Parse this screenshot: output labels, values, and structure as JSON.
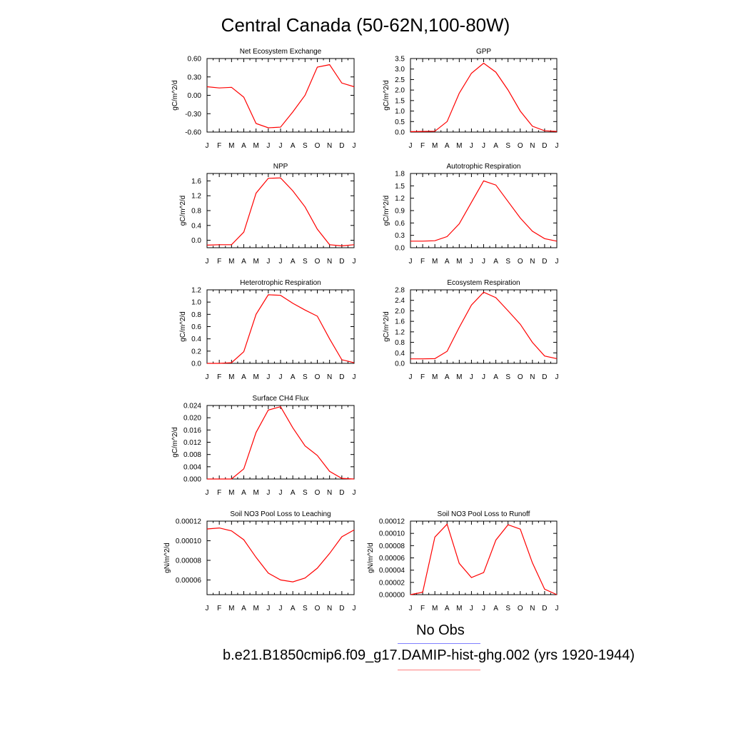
{
  "page": {
    "title": "Central Canada (50-62N,100-80W)",
    "legend": [
      {
        "label": "No Obs",
        "color": "#8080ff"
      },
      {
        "label": "b.e21.B1850cmip6.f09_g17.DAMIP-hist-ghg.002 (yrs 1920-1944)",
        "color": "#ff8080"
      }
    ]
  },
  "chart_data": [
    {
      "type": "line",
      "title": "Net Ecosystem Exchange",
      "ylabel": "gC/m^2/d",
      "x": [
        "J",
        "F",
        "M",
        "A",
        "M",
        "J",
        "J",
        "A",
        "S",
        "O",
        "N",
        "D",
        "J"
      ],
      "ylim": [
        -0.6,
        0.6
      ],
      "yticks": [
        "-0.60",
        "-0.30",
        "0.00",
        "0.30",
        "0.60"
      ],
      "series": [
        {
          "color": "#ff0000",
          "values": [
            0.14,
            0.12,
            0.13,
            -0.03,
            -0.46,
            -0.53,
            -0.52,
            -0.27,
            0.0,
            0.46,
            0.5,
            0.2,
            0.14
          ]
        }
      ]
    },
    {
      "type": "line",
      "title": "GPP",
      "ylabel": "gC/m^2/d",
      "x": [
        "J",
        "F",
        "M",
        "A",
        "M",
        "J",
        "J",
        "A",
        "S",
        "O",
        "N",
        "D",
        "J"
      ],
      "ylim": [
        0,
        3.5
      ],
      "yticks": [
        "0.0",
        "0.5",
        "1.0",
        "1.5",
        "2.0",
        "2.5",
        "3.0",
        "3.5"
      ],
      "series": [
        {
          "color": "#ff0000",
          "values": [
            0.02,
            0.03,
            0.04,
            0.5,
            1.85,
            2.8,
            3.28,
            2.85,
            2.0,
            1.0,
            0.28,
            0.06,
            0.03
          ]
        }
      ]
    },
    {
      "type": "line",
      "title": "NPP",
      "ylabel": "gC/m^2/d",
      "x": [
        "J",
        "F",
        "M",
        "A",
        "M",
        "J",
        "J",
        "A",
        "S",
        "O",
        "N",
        "D",
        "J"
      ],
      "ylim": [
        -0.2,
        1.8
      ],
      "yticks": [
        "0.0",
        "0.4",
        "0.8",
        "1.2",
        "1.6"
      ],
      "series": [
        {
          "color": "#ff0000",
          "values": [
            -0.13,
            -0.12,
            -0.12,
            0.22,
            1.27,
            1.67,
            1.68,
            1.33,
            0.9,
            0.3,
            -0.12,
            -0.15,
            -0.12
          ]
        }
      ]
    },
    {
      "type": "line",
      "title": "Autotrophic Respiration",
      "ylabel": "gC/m^2/d",
      "x": [
        "J",
        "F",
        "M",
        "A",
        "M",
        "J",
        "J",
        "A",
        "S",
        "O",
        "N",
        "D",
        "J"
      ],
      "ylim": [
        0,
        1.8
      ],
      "yticks": [
        "0.0",
        "0.3",
        "0.6",
        "0.9",
        "1.2",
        "1.5",
        "1.8"
      ],
      "series": [
        {
          "color": "#ff0000",
          "values": [
            0.16,
            0.16,
            0.17,
            0.27,
            0.58,
            1.1,
            1.62,
            1.52,
            1.12,
            0.72,
            0.4,
            0.22,
            0.16
          ]
        }
      ]
    },
    {
      "type": "line",
      "title": "Heterotrophic Respiration",
      "ylabel": "gC/m^2/d",
      "x": [
        "J",
        "F",
        "M",
        "A",
        "M",
        "J",
        "J",
        "A",
        "S",
        "O",
        "N",
        "D",
        "J"
      ],
      "ylim": [
        0,
        1.2
      ],
      "yticks": [
        "0.0",
        "0.2",
        "0.4",
        "0.6",
        "0.8",
        "1.0",
        "1.2"
      ],
      "series": [
        {
          "color": "#ff0000",
          "values": [
            0.0,
            0.0,
            0.01,
            0.19,
            0.8,
            1.12,
            1.11,
            0.98,
            0.87,
            0.77,
            0.4,
            0.06,
            0.01
          ]
        }
      ]
    },
    {
      "type": "line",
      "title": "Ecosystem Respiration",
      "ylabel": "gC/m^2/d",
      "x": [
        "J",
        "F",
        "M",
        "A",
        "M",
        "J",
        "J",
        "A",
        "S",
        "O",
        "N",
        "D",
        "J"
      ],
      "ylim": [
        0,
        2.8
      ],
      "yticks": [
        "0.0",
        "0.4",
        "0.8",
        "1.2",
        "1.6",
        "2.0",
        "2.4",
        "2.8"
      ],
      "series": [
        {
          "color": "#ff0000",
          "values": [
            0.17,
            0.17,
            0.18,
            0.46,
            1.37,
            2.22,
            2.71,
            2.5,
            2.0,
            1.49,
            0.8,
            0.28,
            0.18
          ]
        }
      ]
    },
    {
      "type": "line",
      "title": "Surface CH4 Flux",
      "ylabel": "gC/m^2/d",
      "x": [
        "J",
        "F",
        "M",
        "A",
        "M",
        "J",
        "J",
        "A",
        "S",
        "O",
        "N",
        "D",
        "J"
      ],
      "ylim": [
        0,
        0.024
      ],
      "yticks": [
        "0.000",
        "0.004",
        "0.008",
        "0.012",
        "0.016",
        "0.020",
        "0.024"
      ],
      "series": [
        {
          "color": "#ff0000",
          "values": [
            0.0,
            0.0,
            0.0,
            0.0033,
            0.0152,
            0.0225,
            0.0236,
            0.0167,
            0.0108,
            0.0077,
            0.0025,
            0.0002,
            0.0
          ]
        }
      ]
    },
    {
      "type": "line",
      "title": "Soil NO3 Pool Loss to Leaching",
      "ylabel": "gN/m^2/d",
      "x": [
        "J",
        "F",
        "M",
        "A",
        "M",
        "J",
        "J",
        "A",
        "S",
        "O",
        "N",
        "D",
        "J"
      ],
      "ylim": [
        4.5e-05,
        0.00012
      ],
      "yticks": [
        "0.00006",
        "0.00008",
        "0.00010",
        "0.00012"
      ],
      "series": [
        {
          "color": "#ff0000",
          "values": [
            0.000112,
            0.000113,
            0.00011,
            0.000101,
            8.3e-05,
            6.7e-05,
            6e-05,
            5.8e-05,
            6.2e-05,
            7.2e-05,
            8.7e-05,
            0.000104,
            0.000111
          ]
        }
      ]
    },
    {
      "type": "line",
      "title": "Soil NO3 Pool Loss to Runoff",
      "ylabel": "gN/m^2/d",
      "x": [
        "J",
        "F",
        "M",
        "A",
        "M",
        "J",
        "J",
        "A",
        "S",
        "O",
        "N",
        "D",
        "J"
      ],
      "ylim": [
        0,
        0.00012
      ],
      "yticks": [
        "0.00000",
        "0.00002",
        "0.00004",
        "0.00006",
        "0.00008",
        "0.00010",
        "0.00012"
      ],
      "series": [
        {
          "color": "#ff0000",
          "values": [
            0.0,
            4e-06,
            9.4e-05,
            0.000115,
            5.1e-05,
            2.8e-05,
            3.6e-05,
            8.9e-05,
            0.000114,
            0.000107,
            5.2e-05,
            9e-06,
            0.0
          ]
        }
      ]
    }
  ]
}
